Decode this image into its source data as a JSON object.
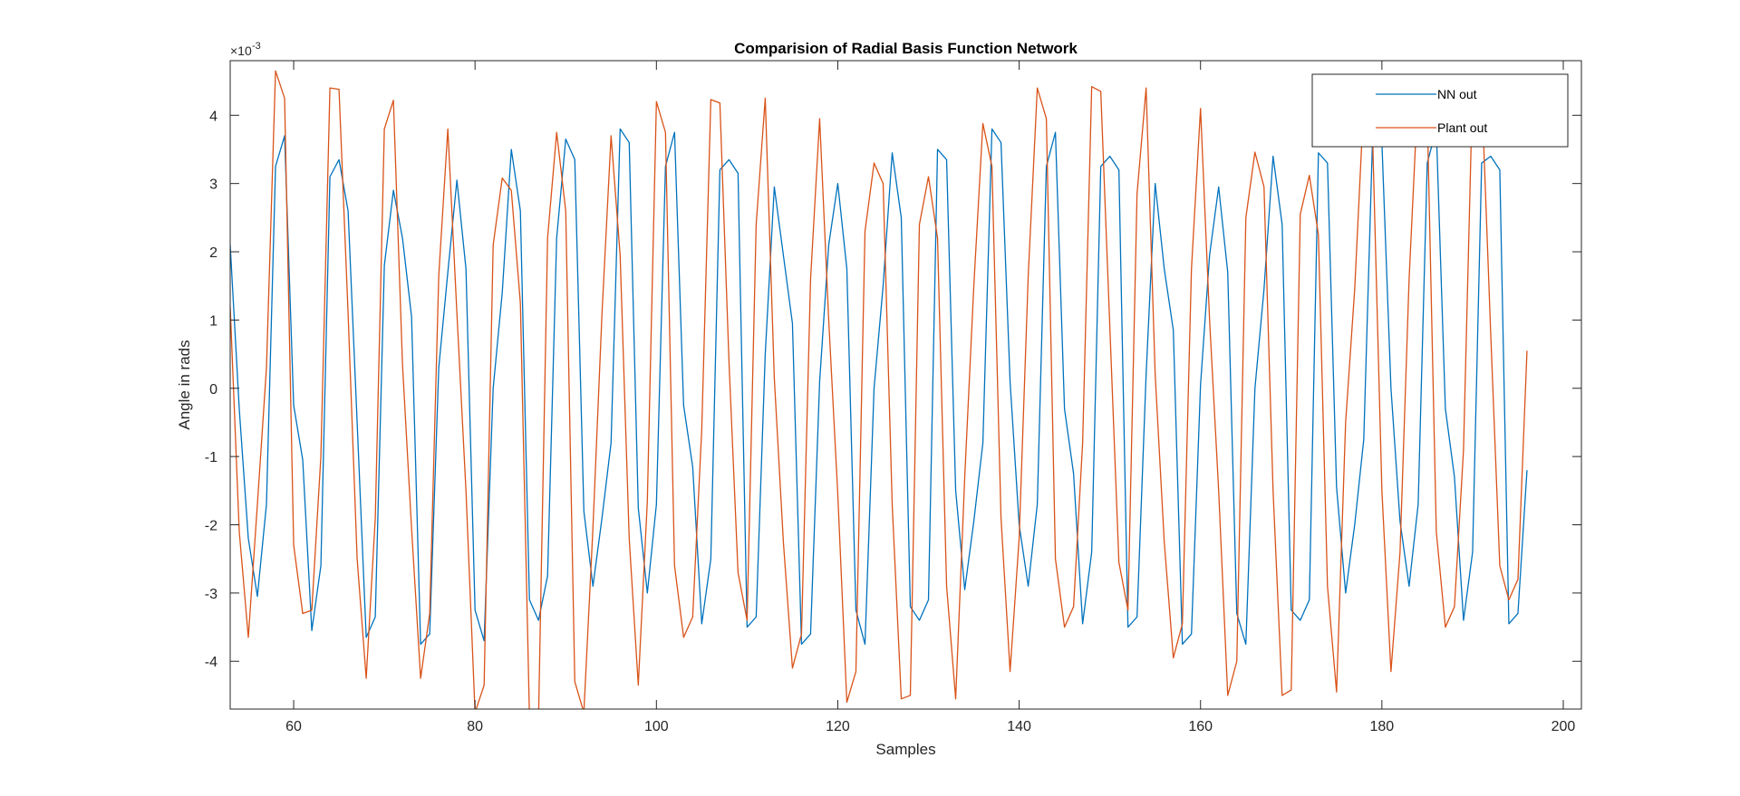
{
  "chart_data": {
    "type": "line",
    "title": "Comparision of Radial Basis Function Network",
    "xlabel": "Samples",
    "ylabel": "Angle in rads",
    "y_exponent_label": "×10",
    "y_exponent_power": "-3",
    "xlim": [
      53,
      202
    ],
    "ylim": [
      -4.7,
      4.8
    ],
    "x_ticks": [
      60,
      80,
      100,
      120,
      140,
      160,
      180,
      200
    ],
    "y_ticks": [
      -4,
      -3,
      -2,
      -1,
      0,
      1,
      2,
      3,
      4
    ],
    "grid": false,
    "legend_position": "top-right",
    "series": [
      {
        "name": "NN out",
        "color": "#0072BD",
        "x_start": 53,
        "values": [
          2.1,
          -0.3,
          -2.2,
          -3.05,
          -1.7,
          3.25,
          3.7,
          -0.25,
          -1.05,
          -3.55,
          -2.6,
          3.1,
          3.35,
          2.6,
          -0.5,
          -3.65,
          -3.35,
          1.8,
          2.9,
          2.2,
          1.05,
          -3.75,
          -3.6,
          0.3,
          1.7,
          3.05,
          1.75,
          -3.25,
          -3.7,
          0.0,
          1.4,
          3.5,
          2.6,
          -3.1,
          -3.4,
          -2.75,
          2.2,
          3.65,
          3.35,
          -1.8,
          -2.9,
          -1.9,
          -0.8,
          3.8,
          3.6,
          -1.75,
          -3.0,
          -1.7,
          3.25,
          3.75,
          -0.25,
          -1.15,
          -3.45,
          -2.5,
          3.2,
          3.35,
          3.15,
          -3.5,
          -3.35,
          0.5,
          2.95,
          1.95,
          0.95,
          -3.75,
          -3.6,
          0.1,
          2.1,
          3.0,
          1.75,
          -3.25,
          -3.75,
          0.0,
          1.5,
          3.45,
          2.5,
          -3.2,
          -3.4,
          -3.1,
          3.5,
          3.35,
          -1.5,
          -2.95,
          -1.95,
          -0.8,
          3.8,
          3.6,
          0.1,
          -2.0,
          -2.9,
          -1.7,
          3.25,
          3.75,
          -0.3,
          -1.25,
          -3.45,
          -2.4,
          3.25,
          3.4,
          3.2,
          -3.5,
          -3.35,
          0.2,
          3.0,
          1.75,
          0.85,
          -3.75,
          -3.6,
          0.05,
          1.95,
          2.95,
          1.7,
          -3.3,
          -3.75,
          0.0,
          1.45,
          3.4,
          2.4,
          -3.25,
          -3.4,
          -3.1,
          3.45,
          3.3,
          -1.45,
          -3.0,
          -2.0,
          -0.75,
          3.8,
          3.6,
          0.0,
          -1.95,
          -2.9,
          -1.7,
          3.3,
          3.8,
          -0.3,
          -1.3,
          -3.4,
          -2.4,
          3.3,
          3.4,
          3.2,
          -3.45,
          -3.3,
          -1.2
        ]
      },
      {
        "name": "Plant out",
        "color": "#D95319",
        "x_start": 53,
        "values": [
          1.2,
          -2.1,
          -3.65,
          -1.7,
          0.3,
          4.65,
          4.25,
          -2.3,
          -3.3,
          -3.25,
          -1.0,
          4.4,
          4.38,
          1.1,
          -2.5,
          -4.25,
          -1.9,
          3.8,
          4.22,
          0.35,
          -2.05,
          -4.25,
          -3.3,
          1.65,
          3.8,
          1.1,
          -1.5,
          -4.75,
          -4.35,
          2.1,
          3.08,
          2.9,
          1.25,
          -4.8,
          -4.85,
          2.2,
          3.75,
          2.6,
          -4.3,
          -4.75,
          -2.05,
          1.1,
          3.7,
          1.95,
          -2.2,
          -4.35,
          -1.65,
          4.2,
          3.75,
          -2.6,
          -3.65,
          -3.35,
          -0.6,
          4.23,
          4.18,
          0.4,
          -2.7,
          -3.4,
          2.4,
          4.25,
          0.15,
          -2.25,
          -4.1,
          -3.6,
          1.6,
          3.95,
          1.0,
          -1.55,
          -4.6,
          -4.15,
          2.3,
          3.3,
          3.0,
          -1.7,
          -4.55,
          -4.5,
          2.4,
          3.1,
          2.2,
          -2.9,
          -4.55,
          -1.3,
          1.5,
          3.88,
          3.25,
          -1.9,
          -4.15,
          -2.2,
          1.65,
          4.4,
          3.95,
          -2.5,
          -3.5,
          -3.2,
          -0.8,
          4.42,
          4.35,
          0.9,
          -2.55,
          -3.25,
          2.85,
          4.4,
          0.2,
          -2.25,
          -3.95,
          -3.45,
          1.75,
          4.1,
          1.0,
          -1.5,
          -4.5,
          -4.0,
          2.5,
          3.46,
          2.95,
          -1.5,
          -4.5,
          -4.42,
          2.55,
          3.12,
          2.25,
          -2.9,
          -4.45,
          -0.5,
          1.45,
          4.2,
          3.55,
          -1.5,
          -4.15,
          -2.4,
          1.6,
          4.4,
          4.05,
          -2.1,
          -3.5,
          -3.2,
          -0.9,
          4.42,
          4.38,
          0.8,
          -2.6,
          -3.1,
          -2.8,
          0.55
        ]
      }
    ]
  }
}
